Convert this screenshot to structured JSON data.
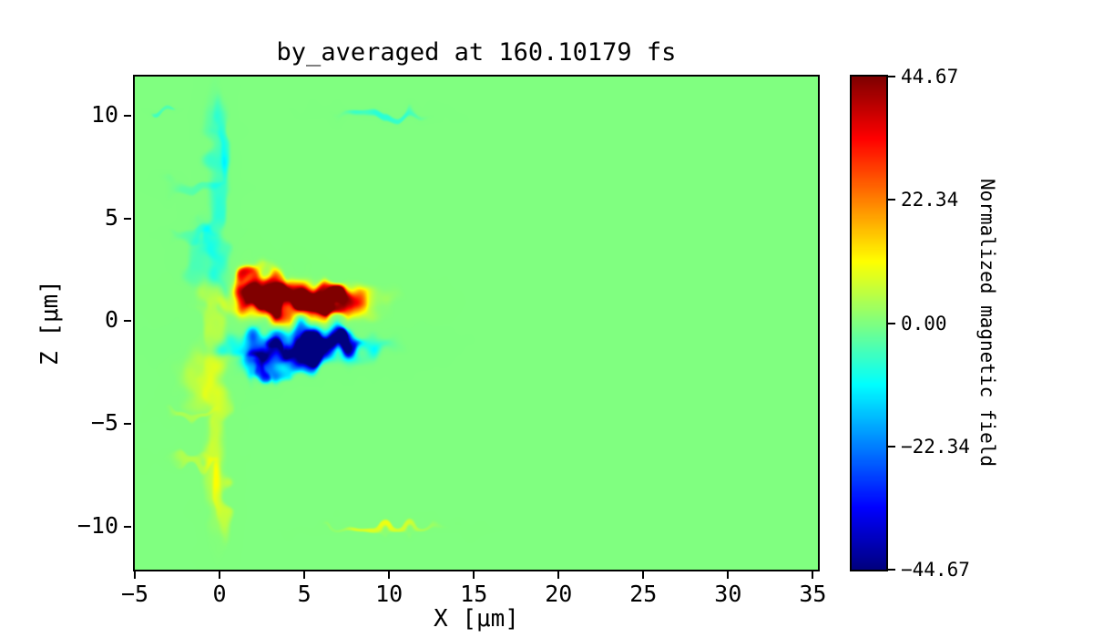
{
  "chart_data": {
    "type": "heatmap",
    "title": "by_averaged at 160.10179 fs",
    "xlabel": "X [μm]",
    "ylabel": "Z [μm]",
    "colormap": "jet",
    "vmin": -44.67,
    "vmax": 44.67,
    "background_value": 0,
    "extent": {
      "xmin": -5,
      "xmax": 35.3,
      "zmin": -12.1,
      "zmax": 11.9
    },
    "xticks": [
      {
        "v": -5,
        "label": "−5"
      },
      {
        "v": 0,
        "label": "0"
      },
      {
        "v": 5,
        "label": "5"
      },
      {
        "v": 10,
        "label": "10"
      },
      {
        "v": 15,
        "label": "15"
      },
      {
        "v": 20,
        "label": "20"
      },
      {
        "v": 25,
        "label": "25"
      },
      {
        "v": 30,
        "label": "30"
      },
      {
        "v": 35,
        "label": "35"
      }
    ],
    "yticks": [
      {
        "v": 10,
        "label": "10"
      },
      {
        "v": 5,
        "label": "5"
      },
      {
        "v": 0,
        "label": "0"
      },
      {
        "v": -5,
        "label": "−5"
      },
      {
        "v": -10,
        "label": "−10"
      }
    ],
    "colorbar": {
      "label": "Normalized magnetic field",
      "ticks": [
        {
          "v": 44.67,
          "label": "44.67"
        },
        {
          "v": 22.34,
          "label": "22.34"
        },
        {
          "v": 0.0,
          "label": "0.00"
        },
        {
          "v": -22.34,
          "label": "−22.34"
        },
        {
          "v": -44.67,
          "label": "−44.67"
        }
      ]
    },
    "features": {
      "positive_blobs": [
        {
          "x": 4.6,
          "z": 0.95,
          "rx": 3.5,
          "rz": 0.7,
          "v": 26
        },
        {
          "x": 1.7,
          "z": 1.8,
          "rx": 0.75,
          "rz": 0.85,
          "v": 26
        },
        {
          "x": 3.0,
          "z": 1.55,
          "rx": 0.85,
          "rz": 0.75,
          "v": 28
        },
        {
          "x": 4.6,
          "z": 1.45,
          "rx": 0.95,
          "rz": 0.7,
          "v": 26
        },
        {
          "x": 6.2,
          "z": 1.15,
          "rx": 0.85,
          "rz": 0.6,
          "v": 24
        },
        {
          "x": 7.4,
          "z": 0.85,
          "rx": 0.9,
          "rz": 0.5,
          "v": 22
        },
        {
          "x": 1.5,
          "z": 2.3,
          "rx": 0.45,
          "rz": 0.4,
          "v": 14
        },
        {
          "x": 2.3,
          "z": 1.0,
          "rx": 0.4,
          "rz": 0.35,
          "v": 18
        },
        {
          "x": 3.4,
          "z": 0.85,
          "rx": 0.35,
          "rz": 0.3,
          "v": 16
        },
        {
          "x": 5.1,
          "z": 1.0,
          "rx": 0.45,
          "rz": 0.35,
          "v": 16
        },
        {
          "x": 6.3,
          "z": 0.75,
          "rx": 0.35,
          "rz": 0.3,
          "v": 14
        }
      ],
      "negative_blobs": [
        {
          "x": 4.7,
          "z": -1.15,
          "rx": 3.6,
          "rz": 0.65,
          "v": -26
        },
        {
          "x": 1.9,
          "z": -2.0,
          "rx": 0.7,
          "rz": 0.7,
          "v": -24
        },
        {
          "x": 3.3,
          "z": -1.8,
          "rx": 0.85,
          "rz": 0.65,
          "v": -26
        },
        {
          "x": 4.9,
          "z": -1.75,
          "rx": 0.9,
          "rz": 0.6,
          "v": -24
        },
        {
          "x": 6.1,
          "z": -1.4,
          "rx": 0.8,
          "rz": 0.55,
          "v": -22
        },
        {
          "x": 7.5,
          "z": -0.95,
          "rx": 0.9,
          "rz": 0.45,
          "v": -20
        },
        {
          "x": 2.3,
          "z": -2.3,
          "rx": 0.4,
          "rz": 0.35,
          "v": -12
        },
        {
          "x": 3.0,
          "z": -1.1,
          "rx": 0.4,
          "rz": 0.3,
          "v": -16
        },
        {
          "x": 4.2,
          "z": -1.2,
          "rx": 0.45,
          "rz": 0.35,
          "v": -18
        },
        {
          "x": 5.5,
          "z": -1.05,
          "rx": 0.4,
          "rz": 0.3,
          "v": -16
        },
        {
          "x": 7.3,
          "z": -0.8,
          "rx": 0.45,
          "rz": 0.3,
          "v": -16
        }
      ],
      "faint_features": [
        {
          "x": -0.2,
          "z": 5.2,
          "rx": 0.55,
          "rz": 4.2,
          "v": -6
        },
        {
          "x": 0.15,
          "z": 8.7,
          "rx": 0.3,
          "rz": 1.6,
          "v": -6
        },
        {
          "x": -1.0,
          "z": 3.0,
          "rx": 0.8,
          "rz": 1.3,
          "v": -4
        },
        {
          "x": -1.5,
          "z": 6.5,
          "rx": 1.2,
          "rz": 0.25,
          "v": -4
        },
        {
          "x": -1.2,
          "z": 4.2,
          "rx": 1.0,
          "rz": 0.2,
          "v": -4
        },
        {
          "x": -0.2,
          "z": -4.8,
          "rx": 0.6,
          "rz": 4.2,
          "v": 6
        },
        {
          "x": -1.1,
          "z": -2.6,
          "rx": 0.9,
          "rz": 1.4,
          "v": 5
        },
        {
          "x": 0.1,
          "z": -8.6,
          "rx": 0.3,
          "rz": 1.6,
          "v": 5
        },
        {
          "x": -1.8,
          "z": -4.5,
          "rx": 1.0,
          "rz": 0.2,
          "v": 4
        },
        {
          "x": -1.4,
          "z": -6.8,
          "rx": 1.2,
          "rz": 0.22,
          "v": 4
        },
        {
          "x": -0.4,
          "z": 0.8,
          "rx": 0.5,
          "rz": 1.2,
          "v": 4
        },
        {
          "x": 9.6,
          "z": 10.05,
          "rx": 1.9,
          "rz": 0.16,
          "v": -7
        },
        {
          "x": -3.3,
          "z": 10.2,
          "rx": 0.5,
          "rz": 0.12,
          "v": -5
        },
        {
          "x": 9.9,
          "z": -10.1,
          "rx": 2.4,
          "rz": 0.18,
          "v": 8
        }
      ]
    },
    "noise": {
      "warp": 0.45,
      "base": 0.8,
      "amp": 0.45,
      "scale": 1.6,
      "warp_scale": 1.4
    },
    "description": "2D field map on green (zero) background: irregular red/orange positive lobe at x≈1–8.5, z≈0.3–2.5 and mirrored blue negative lobe at z≈−0.4–−2.4; faint cyan/yellow vertical plumes near x≈0 and thin streaks at z≈±10."
  }
}
